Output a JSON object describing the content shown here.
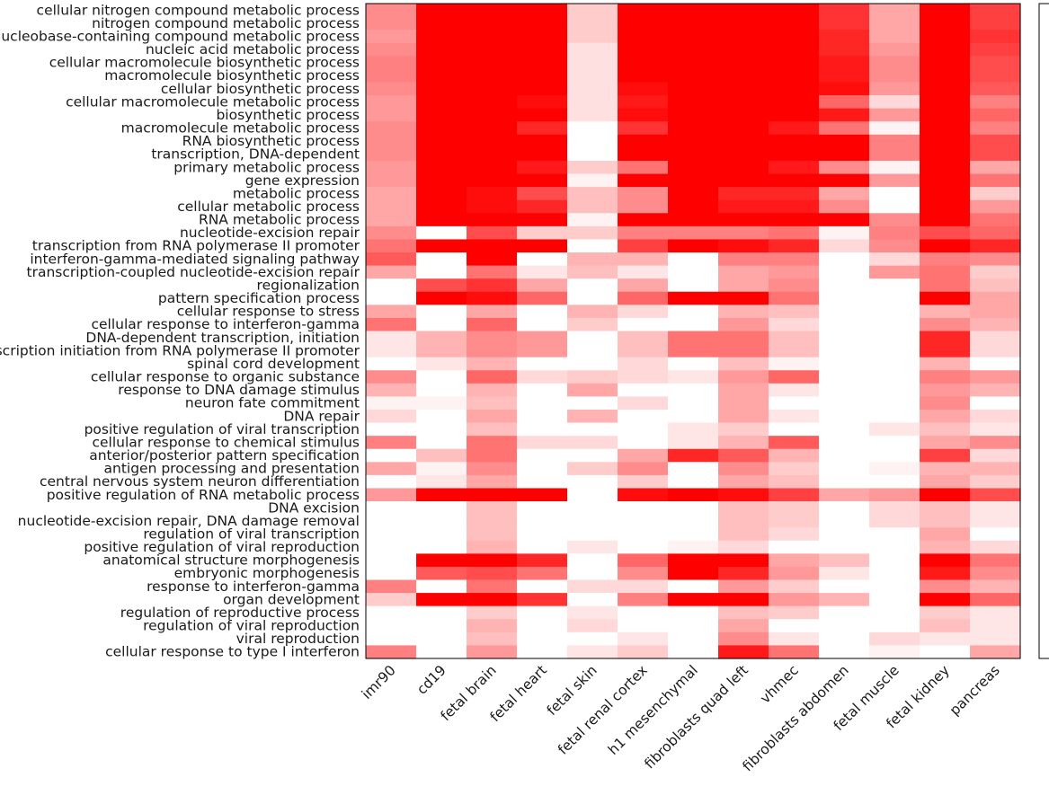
{
  "chart_data": {
    "type": "heatmap",
    "title": "",
    "xlabel": "",
    "ylabel": "",
    "colormap": {
      "low": "#ffffff",
      "high": "#ff0000"
    },
    "value_range": [
      0,
      1
    ],
    "columns": [
      "imr90",
      "cd19",
      "fetal brain",
      "fetal heart",
      "fetal skin",
      "fetal renal cortex",
      "h1 mesenchymal",
      "fibroblasts quad left",
      "vhmec",
      "fibroblasts abdomen",
      "fetal muscle",
      "fetal kidney",
      "pancreas"
    ],
    "rows": [
      "cellular nitrogen compound metabolic process",
      "nitrogen compound metabolic process",
      "nucleobase-containing compound metabolic process",
      "nucleic acid metabolic process",
      "cellular macromolecule biosynthetic process",
      "macromolecule biosynthetic process",
      "cellular biosynthetic process",
      "cellular macromolecule metabolic process",
      "biosynthetic process",
      "macromolecule metabolic process",
      "RNA biosynthetic process",
      "transcription, DNA-dependent",
      "primary metabolic process",
      "gene expression",
      "metabolic process",
      "cellular metabolic process",
      "RNA metabolic process",
      "nucleotide-excision repair",
      "transcription from RNA polymerase II promoter",
      "interferon-gamma-mediated signaling pathway",
      "transcription-coupled nucleotide-excision repair",
      "regionalization",
      "pattern specification process",
      "cellular response to stress",
      "cellular response to interferon-gamma",
      "DNA-dependent transcription, initiation",
      "transcription initiation from RNA polymerase II promoter",
      "spinal cord development",
      "cellular response to organic substance",
      "response to DNA damage stimulus",
      "neuron fate commitment",
      "DNA repair",
      "positive regulation of viral transcription",
      "cellular response to chemical stimulus",
      "anterior/posterior pattern specification",
      "antigen processing and presentation",
      "central nervous system neuron differentiation",
      "positive regulation of RNA metabolic process",
      "DNA excision",
      "nucleotide-excision repair, DNA damage removal",
      "regulation of viral transcription",
      "positive regulation of viral reproduction",
      "anatomical structure morphogenesis",
      "embryonic morphogenesis",
      "response to interferon-gamma",
      "organ development",
      "regulation of reproductive process",
      "regulation of viral reproduction",
      "viral reproduction",
      "cellular response to type I interferon"
    ],
    "values": [
      [
        0.45,
        1,
        1,
        1,
        0.2,
        1,
        1,
        1,
        1,
        0.8,
        0.35,
        1,
        0.75
      ],
      [
        0.45,
        1,
        1,
        1,
        0.2,
        1,
        1,
        1,
        1,
        0.8,
        0.35,
        1,
        0.75
      ],
      [
        0.4,
        1,
        1,
        1,
        0.2,
        1,
        1,
        1,
        1,
        0.85,
        0.35,
        1,
        0.8
      ],
      [
        0.45,
        1,
        1,
        1,
        0.12,
        1,
        1,
        1,
        1,
        0.85,
        0.4,
        1,
        0.75
      ],
      [
        0.5,
        1,
        1,
        1,
        0.12,
        1,
        1,
        1,
        1,
        0.9,
        0.45,
        1,
        0.7
      ],
      [
        0.5,
        1,
        1,
        1,
        0.12,
        1,
        1,
        1,
        1,
        0.9,
        0.45,
        1,
        0.7
      ],
      [
        0.45,
        1,
        1,
        1,
        0.12,
        0.95,
        1,
        1,
        1,
        0.95,
        0.4,
        1,
        0.65
      ],
      [
        0.4,
        1,
        1,
        0.95,
        0.12,
        0.9,
        1,
        1,
        1,
        0.6,
        0.15,
        1,
        0.5
      ],
      [
        0.4,
        1,
        1,
        1,
        0.12,
        0.95,
        1,
        1,
        1,
        0.9,
        0.4,
        1,
        0.6
      ],
      [
        0.45,
        1,
        1,
        0.85,
        0,
        0.8,
        1,
        1,
        0.9,
        0.55,
        0.05,
        1,
        0.5
      ],
      [
        0.45,
        1,
        1,
        1,
        0,
        1,
        1,
        1,
        1,
        1,
        0.5,
        1,
        0.7
      ],
      [
        0.45,
        1,
        1,
        1,
        0,
        1,
        1,
        1,
        1,
        1,
        0.5,
        1,
        0.7
      ],
      [
        0.4,
        1,
        1,
        0.9,
        0.2,
        0.55,
        1,
        1,
        0.9,
        0.45,
        0.05,
        1,
        0.35
      ],
      [
        0.4,
        1,
        1,
        1,
        0.05,
        1,
        1,
        1,
        1,
        1,
        0.4,
        1,
        0.55
      ],
      [
        0.35,
        1,
        0.95,
        0.7,
        0.25,
        0.45,
        1,
        0.85,
        0.85,
        0.35,
        0,
        1,
        0.2
      ],
      [
        0.35,
        1,
        0.95,
        0.85,
        0.25,
        0.45,
        1,
        0.9,
        0.9,
        0.45,
        0,
        1,
        0.4
      ],
      [
        0.35,
        1,
        1,
        1,
        0.05,
        1,
        1,
        1,
        1,
        1,
        0.45,
        1,
        0.55
      ],
      [
        0.45,
        0,
        0.7,
        0.2,
        0.2,
        0.5,
        0.5,
        0.5,
        0.55,
        0.05,
        0.5,
        0.7,
        0.6
      ],
      [
        0.55,
        1,
        1,
        1,
        0,
        0.75,
        1,
        0.95,
        0.85,
        0.15,
        0.45,
        1,
        0.85
      ],
      [
        0.65,
        0,
        1,
        0,
        0.3,
        0.3,
        0,
        0.5,
        0.5,
        0,
        0.15,
        0.5,
        0.45
      ],
      [
        0.35,
        0,
        0.55,
        0.1,
        0.25,
        0.1,
        0,
        0.35,
        0.4,
        0,
        0.4,
        0.55,
        0.2
      ],
      [
        0,
        0.7,
        0.8,
        0.35,
        0,
        0.35,
        0,
        0.35,
        0.45,
        0,
        0,
        0.55,
        0.25
      ],
      [
        0,
        1,
        0.95,
        0.6,
        0,
        0.6,
        1,
        1,
        0.55,
        0,
        0,
        1,
        0.35
      ],
      [
        0.35,
        0,
        0.35,
        0,
        0.3,
        0.15,
        0,
        0.3,
        0.25,
        0,
        0,
        0.3,
        0.35
      ],
      [
        0.55,
        0,
        0.6,
        0,
        0.2,
        0,
        0,
        0.4,
        0.15,
        0,
        0,
        0.45,
        0.3
      ],
      [
        0.1,
        0.3,
        0.45,
        0.4,
        0,
        0.25,
        0.55,
        0.55,
        0.25,
        0,
        0,
        0.85,
        0.15
      ],
      [
        0.1,
        0.3,
        0.45,
        0.4,
        0,
        0.25,
        0.55,
        0.55,
        0.25,
        0,
        0,
        0.85,
        0.15
      ],
      [
        0,
        0.1,
        0.3,
        0,
        0,
        0.15,
        0,
        0.25,
        0.05,
        0,
        0,
        0.3,
        0
      ],
      [
        0.45,
        0,
        0.6,
        0.15,
        0.2,
        0.15,
        0.1,
        0.4,
        0.6,
        0,
        0,
        0.5,
        0.4
      ],
      [
        0.3,
        0,
        0.3,
        0,
        0.35,
        0,
        0,
        0.35,
        0.1,
        0,
        0,
        0.4,
        0.3
      ],
      [
        0.05,
        0.05,
        0.25,
        0,
        0,
        0.15,
        0,
        0.35,
        0,
        0,
        0,
        0.45,
        0
      ],
      [
        0.15,
        0,
        0.35,
        0,
        0.3,
        0,
        0,
        0.35,
        0.1,
        0,
        0,
        0.35,
        0.15
      ],
      [
        0,
        0,
        0.25,
        0,
        0,
        0,
        0.1,
        0.2,
        0,
        0,
        0.1,
        0.25,
        0.1
      ],
      [
        0.5,
        0,
        0.55,
        0.15,
        0.15,
        0,
        0.1,
        0.3,
        0.65,
        0,
        0,
        0.35,
        0.45
      ],
      [
        0,
        0.25,
        0.55,
        0,
        0,
        0.35,
        0.85,
        0.65,
        0.3,
        0,
        0,
        0.75,
        0.15
      ],
      [
        0.35,
        0.05,
        0.45,
        0,
        0.2,
        0.45,
        0,
        0.45,
        0.2,
        0,
        0.05,
        0.3,
        0.3
      ],
      [
        0,
        0.1,
        0.35,
        0,
        0,
        0.2,
        0,
        0.35,
        0.25,
        0,
        0,
        0.35,
        0.2
      ],
      [
        0.4,
        1,
        1,
        1,
        0,
        0.95,
        1,
        0.95,
        0.75,
        0.35,
        0.4,
        1,
        0.7
      ],
      [
        0,
        0,
        0.25,
        0,
        0,
        0,
        0,
        0.25,
        0.2,
        0,
        0.15,
        0.25,
        0.1
      ],
      [
        0,
        0,
        0.25,
        0,
        0,
        0,
        0,
        0.25,
        0.2,
        0,
        0.15,
        0.25,
        0.1
      ],
      [
        0,
        0,
        0.25,
        0,
        0,
        0,
        0,
        0.25,
        0.15,
        0,
        0,
        0.35,
        0
      ],
      [
        0,
        0,
        0.3,
        0,
        0.1,
        0,
        0.05,
        0.15,
        0,
        0,
        0,
        0.3,
        0.15
      ],
      [
        0,
        1,
        1,
        0.85,
        0,
        0.6,
        1,
        1,
        0.35,
        0.25,
        0,
        1,
        0.55
      ],
      [
        0,
        0.65,
        0.7,
        0.55,
        0,
        0.45,
        1,
        0.85,
        0.4,
        0.1,
        0,
        0.9,
        0.45
      ],
      [
        0.5,
        0,
        0.55,
        0,
        0.15,
        0.15,
        0,
        0.4,
        0.2,
        0,
        0,
        0.45,
        0.3
      ],
      [
        0.2,
        1,
        1,
        0.8,
        0,
        0.5,
        1,
        1,
        0.4,
        0.3,
        0,
        1,
        0.6
      ],
      [
        0,
        0,
        0.2,
        0,
        0.1,
        0,
        0,
        0.25,
        0.2,
        0,
        0,
        0.2,
        0.1
      ],
      [
        0,
        0,
        0.3,
        0,
        0.15,
        0,
        0,
        0.35,
        0,
        0,
        0,
        0.25,
        0.1
      ],
      [
        0,
        0,
        0.25,
        0,
        0,
        0.1,
        0,
        0.45,
        0.1,
        0,
        0.15,
        0.1,
        0.1
      ],
      [
        0.5,
        0,
        0.4,
        0,
        0.1,
        0.2,
        0,
        0.9,
        0.55,
        0,
        0.05,
        0,
        0.35
      ]
    ]
  }
}
